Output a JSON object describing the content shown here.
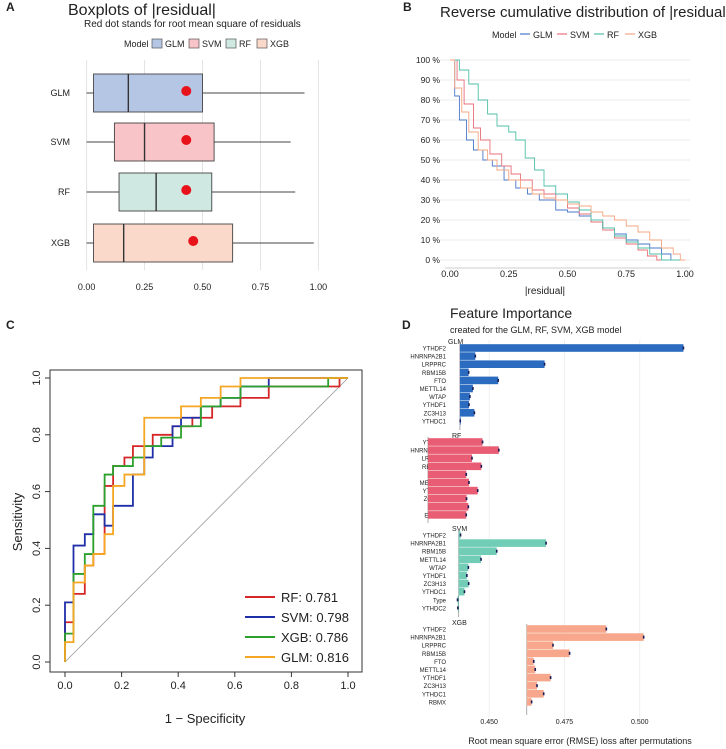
{
  "panel_labels": {
    "a": "A",
    "b": "B",
    "c": "C",
    "d": "D"
  },
  "colors": {
    "GLM": "#4a78c9",
    "SVM": "#e8707a",
    "RF": "#4fbfa8",
    "XGB": "#f4a582"
  },
  "chart_data": [
    {
      "type": "boxplot",
      "title": "Boxplots of |residual|",
      "subtitle": "Red dot stands for root mean square of residuals",
      "legend_title": "Model",
      "legend": [
        "GLM",
        "SVM",
        "RF",
        "XGB"
      ],
      "xlim": [
        -0.05,
        1.05
      ],
      "xticks": [
        "0.00",
        "0.25",
        "0.50",
        "0.75",
        "1.00"
      ],
      "xtick_values": [
        0,
        0.25,
        0.5,
        0.75,
        1.0
      ],
      "boxes": [
        {
          "name": "GLM",
          "min": 0.0,
          "q1": 0.03,
          "median": 0.18,
          "q3": 0.5,
          "max": 0.94,
          "rmse": 0.43,
          "fill": "#b4c6e4"
        },
        {
          "name": "SVM",
          "min": 0.0,
          "q1": 0.12,
          "median": 0.25,
          "q3": 0.55,
          "max": 0.88,
          "rmse": 0.43,
          "fill": "#f8c4c8"
        },
        {
          "name": "RF",
          "min": 0.0,
          "q1": 0.14,
          "median": 0.3,
          "q3": 0.54,
          "max": 0.9,
          "rmse": 0.43,
          "fill": "#cfe9e2"
        },
        {
          "name": "XGB",
          "min": 0.0,
          "q1": 0.03,
          "median": 0.16,
          "q3": 0.63,
          "max": 0.98,
          "rmse": 0.46,
          "fill": "#fad9cb"
        }
      ]
    },
    {
      "type": "line",
      "title": "Reverse cumulative distribution of |residual|",
      "legend_title": "Model",
      "legend": [
        "GLM",
        "SVM",
        "RF",
        "XGB"
      ],
      "xlabel": "|residual|",
      "xlim": [
        0,
        1
      ],
      "ylim": [
        0,
        100
      ],
      "xticks": [
        "0.00",
        "0.25",
        "0.50",
        "0.75",
        "1.00"
      ],
      "xtick_values": [
        0,
        0.25,
        0.5,
        0.75,
        1.0
      ],
      "yticks": [
        "0 %",
        "10 %",
        "20 %",
        "30 %",
        "40 %",
        "50 %",
        "60 %",
        "70 %",
        "80 %",
        "90 %",
        "100 %"
      ],
      "ytick_values": [
        0,
        10,
        20,
        30,
        40,
        50,
        60,
        70,
        80,
        90,
        100
      ],
      "series": [
        {
          "name": "GLM",
          "x": [
            0,
            0.02,
            0.04,
            0.07,
            0.1,
            0.14,
            0.18,
            0.23,
            0.28,
            0.33,
            0.38,
            0.45,
            0.5,
            0.55,
            0.6,
            0.65,
            0.7,
            0.75,
            0.8,
            0.85,
            0.9,
            0.94,
            1.0
          ],
          "y": [
            100,
            82,
            70,
            60,
            55,
            50,
            47,
            40,
            36,
            33,
            30,
            25,
            24,
            22,
            19,
            16,
            13,
            10,
            8,
            6,
            3,
            0,
            0
          ]
        },
        {
          "name": "SVM",
          "x": [
            0,
            0.03,
            0.06,
            0.1,
            0.13,
            0.17,
            0.22,
            0.26,
            0.3,
            0.35,
            0.4,
            0.45,
            0.5,
            0.55,
            0.6,
            0.65,
            0.7,
            0.75,
            0.8,
            0.84,
            0.88,
            1.0
          ],
          "y": [
            100,
            90,
            78,
            66,
            60,
            53,
            47,
            43,
            40,
            35,
            33,
            30,
            26,
            23,
            19,
            15,
            11,
            8,
            5,
            2,
            0,
            0
          ]
        },
        {
          "name": "RF",
          "x": [
            0,
            0.04,
            0.08,
            0.12,
            0.16,
            0.2,
            0.25,
            0.28,
            0.32,
            0.36,
            0.4,
            0.45,
            0.5,
            0.55,
            0.6,
            0.65,
            0.7,
            0.75,
            0.8,
            0.85,
            0.9,
            1.0
          ],
          "y": [
            100,
            95,
            88,
            80,
            73,
            67,
            64,
            60,
            51,
            45,
            37,
            33,
            29,
            25,
            20,
            16,
            12,
            9,
            6,
            3,
            0,
            0
          ]
        },
        {
          "name": "XGB",
          "x": [
            0,
            0.02,
            0.05,
            0.08,
            0.12,
            0.16,
            0.2,
            0.25,
            0.3,
            0.35,
            0.4,
            0.45,
            0.5,
            0.55,
            0.6,
            0.65,
            0.7,
            0.75,
            0.8,
            0.85,
            0.9,
            0.95,
            0.98,
            1.0
          ],
          "y": [
            100,
            86,
            74,
            64,
            55,
            50,
            45,
            40,
            36,
            33,
            31,
            30,
            28,
            27,
            24,
            22,
            20,
            17,
            14,
            10,
            6,
            3,
            0,
            0
          ]
        }
      ]
    },
    {
      "type": "line",
      "subtype": "roc",
      "xlabel": "1 − Specificity",
      "ylabel": "Sensitivity",
      "xlim": [
        0,
        1
      ],
      "ylim": [
        0,
        1
      ],
      "xticks": [
        "0.0",
        "0.2",
        "0.4",
        "0.6",
        "0.8",
        "1.0"
      ],
      "xtick_values": [
        0,
        0.2,
        0.4,
        0.6,
        0.8,
        1.0
      ],
      "yticks": [
        "0.0",
        "0.2",
        "0.4",
        "0.6",
        "0.8",
        "1.0"
      ],
      "ytick_values": [
        0,
        0.2,
        0.4,
        0.6,
        0.8,
        1.0
      ],
      "series": [
        {
          "name": "RF",
          "label": "RF: 0.781",
          "color": "#d62728",
          "x": [
            0,
            0.0,
            0.03,
            0.03,
            0.07,
            0.07,
            0.1,
            0.1,
            0.14,
            0.14,
            0.17,
            0.17,
            0.21,
            0.21,
            0.24,
            0.24,
            0.31,
            0.31,
            0.38,
            0.38,
            0.45,
            0.45,
            0.52,
            0.52,
            0.62,
            0.62,
            0.72,
            0.72,
            0.93,
            0.93,
            0.97,
            0.97,
            1.0
          ],
          "y": [
            0,
            0.14,
            0.14,
            0.24,
            0.24,
            0.34,
            0.34,
            0.38,
            0.38,
            0.62,
            0.62,
            0.69,
            0.69,
            0.72,
            0.72,
            0.76,
            0.76,
            0.8,
            0.8,
            0.83,
            0.83,
            0.86,
            0.86,
            0.9,
            0.9,
            0.93,
            0.93,
            0.97,
            0.97,
            0.97,
            0.97,
            1.0,
            1.0
          ]
        },
        {
          "name": "SVM",
          "label": "SVM: 0.798",
          "color": "#1f2fa8",
          "x": [
            0,
            0.0,
            0.03,
            0.03,
            0.07,
            0.07,
            0.1,
            0.1,
            0.14,
            0.14,
            0.17,
            0.17,
            0.24,
            0.24,
            0.28,
            0.28,
            0.31,
            0.31,
            0.38,
            0.38,
            0.41,
            0.41,
            0.48,
            0.48,
            0.55,
            0.55,
            0.62,
            0.62,
            0.72,
            0.72,
            1.0
          ],
          "y": [
            0,
            0.21,
            0.21,
            0.41,
            0.41,
            0.45,
            0.45,
            0.52,
            0.52,
            0.48,
            0.48,
            0.55,
            0.55,
            0.66,
            0.66,
            0.72,
            0.72,
            0.76,
            0.76,
            0.83,
            0.83,
            0.86,
            0.86,
            0.9,
            0.9,
            0.93,
            0.93,
            0.97,
            0.97,
            1.0,
            1.0
          ]
        },
        {
          "name": "XGB",
          "label": "XGB: 0.786",
          "color": "#2ca02c",
          "x": [
            0,
            0.0,
            0.03,
            0.03,
            0.07,
            0.07,
            0.1,
            0.1,
            0.14,
            0.14,
            0.17,
            0.17,
            0.24,
            0.24,
            0.28,
            0.28,
            0.34,
            0.34,
            0.41,
            0.41,
            0.48,
            0.48,
            0.55,
            0.55,
            0.62,
            0.62,
            0.93,
            0.93,
            1.0
          ],
          "y": [
            0,
            0.1,
            0.1,
            0.31,
            0.31,
            0.38,
            0.38,
            0.55,
            0.55,
            0.66,
            0.66,
            0.69,
            0.69,
            0.72,
            0.72,
            0.76,
            0.76,
            0.79,
            0.79,
            0.83,
            0.83,
            0.9,
            0.9,
            0.93,
            0.93,
            0.97,
            0.97,
            1.0,
            1.0
          ]
        },
        {
          "name": "GLM",
          "label": "GLM: 0.816",
          "color": "#f5a623",
          "x": [
            0,
            0.0,
            0.03,
            0.03,
            0.07,
            0.07,
            0.1,
            0.1,
            0.14,
            0.14,
            0.17,
            0.17,
            0.21,
            0.21,
            0.28,
            0.28,
            0.34,
            0.34,
            0.41,
            0.41,
            0.48,
            0.48,
            0.55,
            0.55,
            0.62,
            0.62,
            0.72,
            0.72,
            0.79,
            0.79,
            0.86,
            0.86,
            1.0
          ],
          "y": [
            0,
            0.07,
            0.07,
            0.28,
            0.28,
            0.34,
            0.34,
            0.38,
            0.38,
            0.45,
            0.45,
            0.62,
            0.62,
            0.66,
            0.66,
            0.86,
            0.86,
            0.86,
            0.86,
            0.9,
            0.9,
            0.93,
            0.93,
            0.97,
            0.97,
            1.0,
            1.0,
            1.0,
            1.0,
            1.0,
            1.0,
            1.0,
            1.0
          ]
        }
      ]
    },
    {
      "type": "bar",
      "orientation": "horizontal",
      "title": "Feature Importance",
      "subtitle": "created for the GLM, RF, SVM, XGB model",
      "xlabel": "Root mean square error (RMSE) loss after permutations",
      "xlim": [
        0.437,
        0.52
      ],
      "xticks": [
        "0.450",
        "0.475",
        "0.500"
      ],
      "xtick_values": [
        0.45,
        0.475,
        0.5
      ],
      "panels": [
        {
          "name": "GLM",
          "baseline": 0.4403,
          "color": "#2b6cc0",
          "features": [
            "YTHDF2",
            "HNRNPA2B1",
            "LRPPRC",
            "RBM15B",
            "FTO",
            "METTL14",
            "WTAP",
            "YTHDF1",
            "ZC3H13",
            "YTHDC1"
          ],
          "values": [
            0.5145,
            0.4454,
            0.4684,
            0.4432,
            0.453,
            0.4446,
            0.4436,
            0.4433,
            0.4451,
            0.4404
          ]
        },
        {
          "name": "RF",
          "baseline": 0.4297,
          "color": "#e85d73",
          "features": [
            "YTHDF2",
            "HNRNPA2B1",
            "LRPPRC",
            "RBM15B",
            "FTO",
            "METTL14",
            "YTHDF1",
            "ZC3H13",
            "RBMX",
            "ELAVL1"
          ],
          "values": [
            0.4478,
            0.4532,
            0.4443,
            0.4474,
            0.4424,
            0.4433,
            0.4462,
            0.4425,
            0.4431,
            0.4424
          ]
        },
        {
          "name": "SVM",
          "baseline": 0.4399,
          "color": "#72cdb6",
          "features": [
            "YTHDF2",
            "HNRNPA2B1",
            "RBM15B",
            "METTL14",
            "WTAP",
            "YTHDF1",
            "ZC3H13",
            "YTHDC1",
            "Type",
            "YTHDC2"
          ],
          "values": [
            0.4405,
            0.4689,
            0.4525,
            0.4473,
            0.4431,
            0.4426,
            0.4432,
            0.4418,
            0.4395,
            0.4396
          ]
        },
        {
          "name": "XGB",
          "baseline": 0.4625,
          "color": "#f7a88c",
          "features": [
            "YTHDF2",
            "HNRNPA2B1",
            "LRPPRC",
            "RBM15B",
            "FTO",
            "METTL14",
            "YTHDF1",
            "ZC3H13",
            "YTHDC1",
            "RBMX"
          ],
          "values": [
            0.4889,
            0.5013,
            0.4712,
            0.4767,
            0.4648,
            0.4653,
            0.4704,
            0.4659,
            0.4681,
            0.4641
          ]
        }
      ]
    }
  ]
}
